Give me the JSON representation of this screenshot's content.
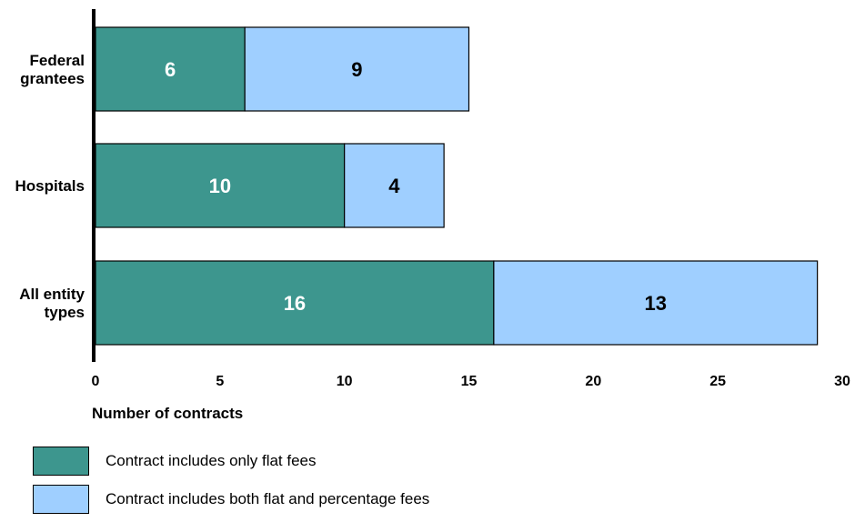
{
  "chart_data": {
    "type": "bar",
    "orientation": "horizontal",
    "stacked": true,
    "categories": [
      "Federal grantees",
      "Hospitals",
      "All entity types"
    ],
    "category_display": [
      [
        "Federal",
        "grantees"
      ],
      [
        "Hospitals"
      ],
      [
        "All entity",
        "types"
      ]
    ],
    "series": [
      {
        "name": "Contract includes only flat fees",
        "values": [
          6,
          10,
          16
        ],
        "color": "#3d968e",
        "label_color": "#ffffff"
      },
      {
        "name": "Contract includes both flat and percentage fees",
        "values": [
          9,
          4,
          13
        ],
        "color": "#9fcfff",
        "label_color": "#000000"
      }
    ],
    "xlabel": "Number of contracts",
    "ylabel": "",
    "xlim": [
      0,
      30
    ],
    "xticks": [
      "0",
      "5",
      "10",
      "15",
      "20",
      "25",
      "30"
    ],
    "grid": false,
    "legend_position": "bottom-left"
  }
}
